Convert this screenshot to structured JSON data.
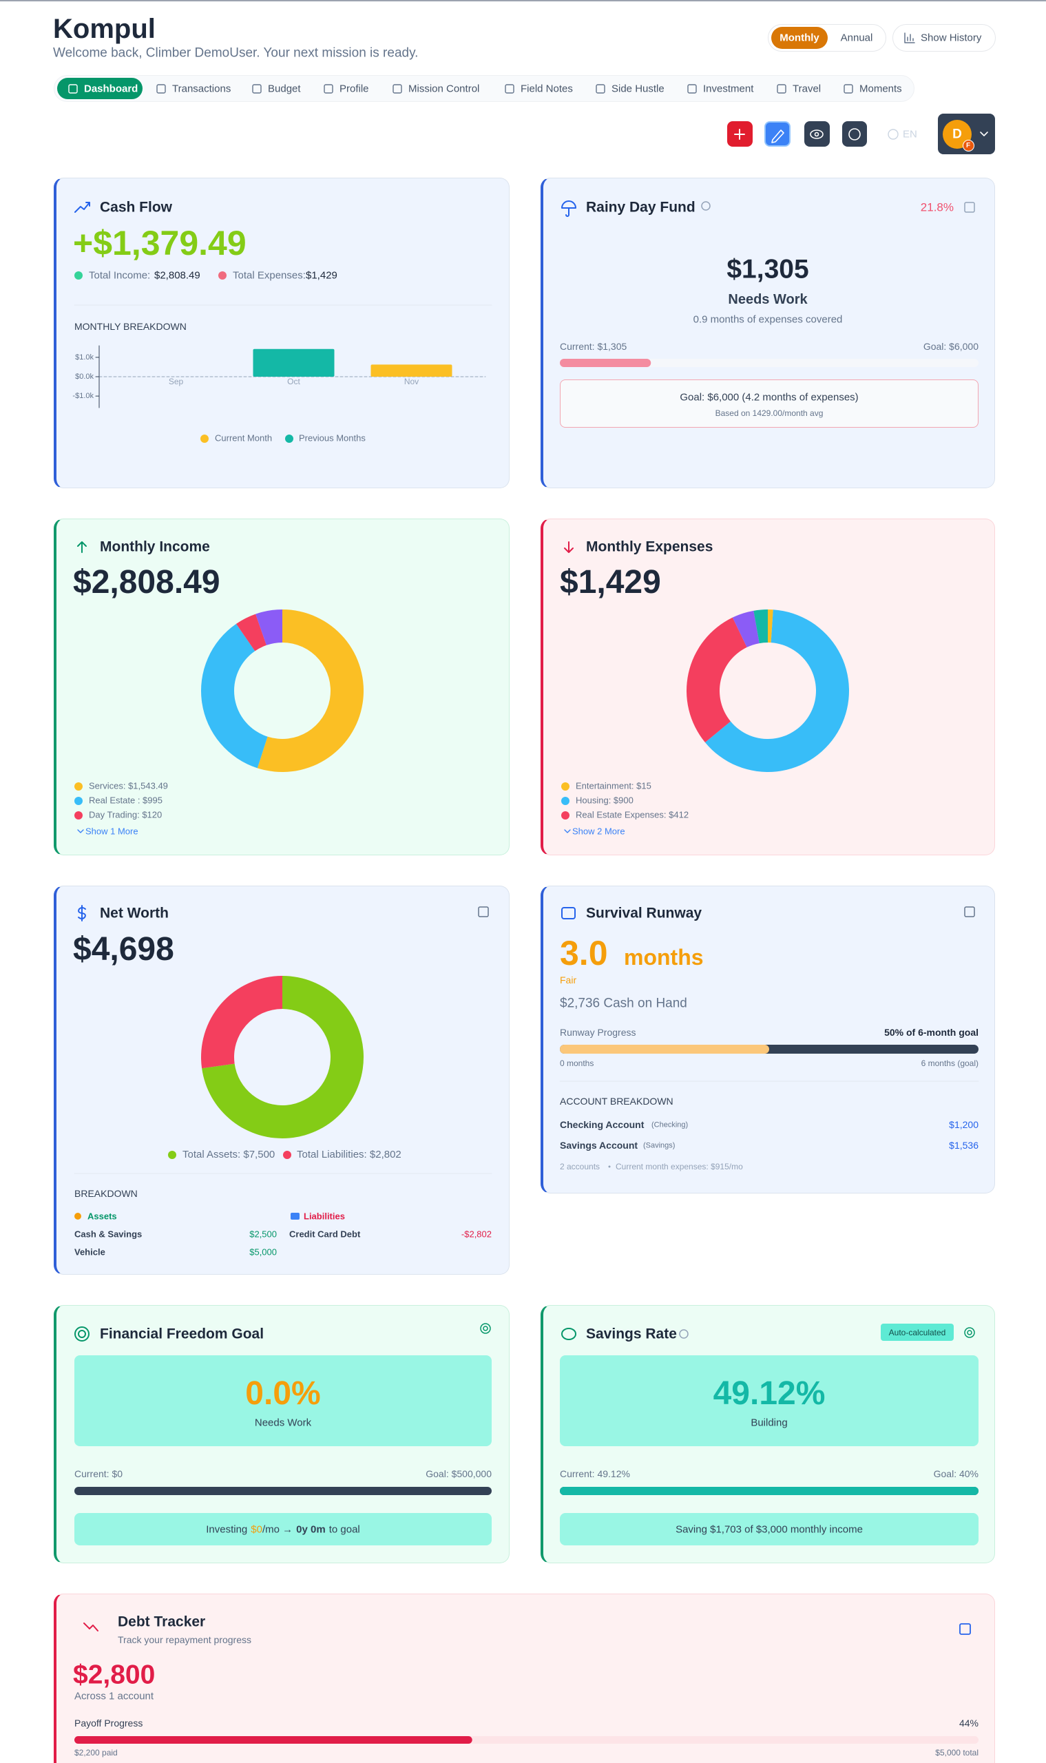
{
  "header": {
    "title": "Kompul",
    "subtitle": "Welcome back, Climber DemoUser. Your next mission is ready.",
    "period": [
      "Monthly",
      "Annual"
    ],
    "history": "Show History"
  },
  "nav": [
    "Dashboard",
    "Transactions",
    "Budget",
    "Profile",
    "Mission Control",
    "Field Notes",
    "Side Hustle",
    "Investment",
    "Travel",
    "Moments"
  ],
  "toolbar": {
    "language": "EN",
    "avatar": "D",
    "badge": "F"
  },
  "cash_flow": {
    "title": "Cash Flow",
    "amount": "+$1,379.49",
    "income_label": "Total Income:",
    "income": "$2,808.49",
    "expenses_label": "Total Expenses:",
    "expenses": "$1,429"
  },
  "rainy_day": {
    "title": "Rainy Day Fund",
    "percent": "21.8%",
    "amount": "$1,305",
    "status": "Needs Work",
    "coverage": "0.9 months of expenses covered",
    "current_label": "Current: $1,305",
    "goal_label": "Goal: $6,000",
    "progress": {
      "current": 1305,
      "goal": 6000
    },
    "goal_text": "Goal: $6,000 (4.2 months of expenses)",
    "basis": "Based on 1429.00/month avg"
  },
  "monthly_income": {
    "title": "Monthly Income",
    "amount": "$2,808.49",
    "more": "Show 1 More"
  },
  "monthly_expenses": {
    "title": "Monthly Expenses",
    "amount": "$1,429",
    "more": "Show 2 More"
  },
  "net_worth": {
    "title": "Net Worth",
    "amount": "$4,698",
    "breakdown": "BREAKDOWN",
    "assets": {
      "heading": "Assets",
      "items": [
        [
          "Cash & Savings",
          "$2,500"
        ],
        [
          "Vehicle",
          "$5,000"
        ]
      ]
    },
    "liabilities": {
      "heading": "Liabilities",
      "items": [
        [
          "Credit Card Debt",
          "-$2,802"
        ]
      ]
    }
  },
  "survival_runway": {
    "title": "Survival Runway",
    "months": "3.0",
    "unit": "months",
    "status": "Fair",
    "cash": "$2,736 Cash on Hand",
    "progress_label": "Runway Progress",
    "progress_text": "50% of 6-month goal",
    "progress": {
      "current": 3.0,
      "goal": 6
    },
    "start": "0 months",
    "end": "6 months (goal)",
    "accounts_heading": "ACCOUNT BREAKDOWN",
    "accounts": [
      {
        "name": "Checking Account",
        "type": "(Checking)",
        "balance": "$1,200"
      },
      {
        "name": "Savings Account",
        "type": "(Savings)",
        "balance": "$1,536"
      }
    ],
    "count": "2 accounts",
    "expenses": "Current month expenses: $915/mo"
  },
  "financial_freedom": {
    "title": "Financial Freedom Goal",
    "percent": "0.0%",
    "status": "Needs Work",
    "current_label": "Current: $0",
    "goal_label": "Goal: $500,000",
    "progress": {
      "current": 0,
      "goal": 500000
    },
    "note": [
      "Investing",
      "$0",
      "/mo →",
      "0y 0m",
      "to goal"
    ]
  },
  "savings_rate": {
    "title": "Savings Rate",
    "badge": "Auto-calculated",
    "percent": "49.12%",
    "status": "Building",
    "current_label": "Current: 49.12%",
    "goal_label": "Goal: 40%",
    "progress": {
      "current": 49.12,
      "goal": 40
    },
    "note": "Saving $1,703 of $3,000 monthly income"
  },
  "debt_tracker": {
    "title": "Debt Tracker",
    "subtitle": "Track your repayment progress",
    "amount": "$2,800",
    "accounts": "Across 1 account",
    "progress_label": "Payoff Progress",
    "percent": "44%",
    "progress": {
      "paid": 2200,
      "total": 5000
    },
    "paid": "$2,200 paid",
    "total": "$5,000 total"
  },
  "chart_data": [
    {
      "type": "bar",
      "title": "MONTHLY BREAKDOWN",
      "categories": [
        "Sep",
        "Oct",
        "Nov"
      ],
      "values": [
        0,
        1430,
        625
      ],
      "colors": [
        "#14b8a6",
        "#14b8a6",
        "#fbbf24"
      ],
      "ylim": [
        -1600,
        1600
      ],
      "yticks": [
        {
          "value": 1000,
          "label": "$1.0k"
        },
        {
          "value": 0,
          "label": "$0.0k"
        },
        {
          "value": -1000,
          "label": "-$1.0k"
        }
      ],
      "legend": [
        {
          "label": "Current Month",
          "color": "#fbbf24"
        },
        {
          "label": "Previous Months",
          "color": "#14b8a6"
        }
      ]
    },
    {
      "type": "pie",
      "categories": [
        "Services: $1,543.49",
        "Real Estate : $995",
        "Day Trading: $120",
        null
      ],
      "values": [
        1543.49,
        995,
        120,
        150
      ],
      "colors": [
        "#fbbf24",
        "#38bdf8",
        "#f43f5e",
        "#8b5cf6"
      ]
    },
    {
      "type": "pie",
      "categories": [
        "Entertainment: $15",
        "Housing: $900",
        "Real Estate Expenses: $412",
        null,
        null
      ],
      "values": [
        15,
        900,
        412,
        62,
        40
      ],
      "colors": [
        "#fbbf24",
        "#38bdf8",
        "#f43f5e",
        "#8b5cf6",
        "#14b8a6"
      ]
    },
    {
      "type": "pie",
      "categories": [
        "Total Assets: $7,500",
        "Total Liabilities: $2,802"
      ],
      "values": [
        7500,
        2802
      ],
      "colors": [
        "#84cc16",
        "#f43f5e"
      ]
    }
  ]
}
